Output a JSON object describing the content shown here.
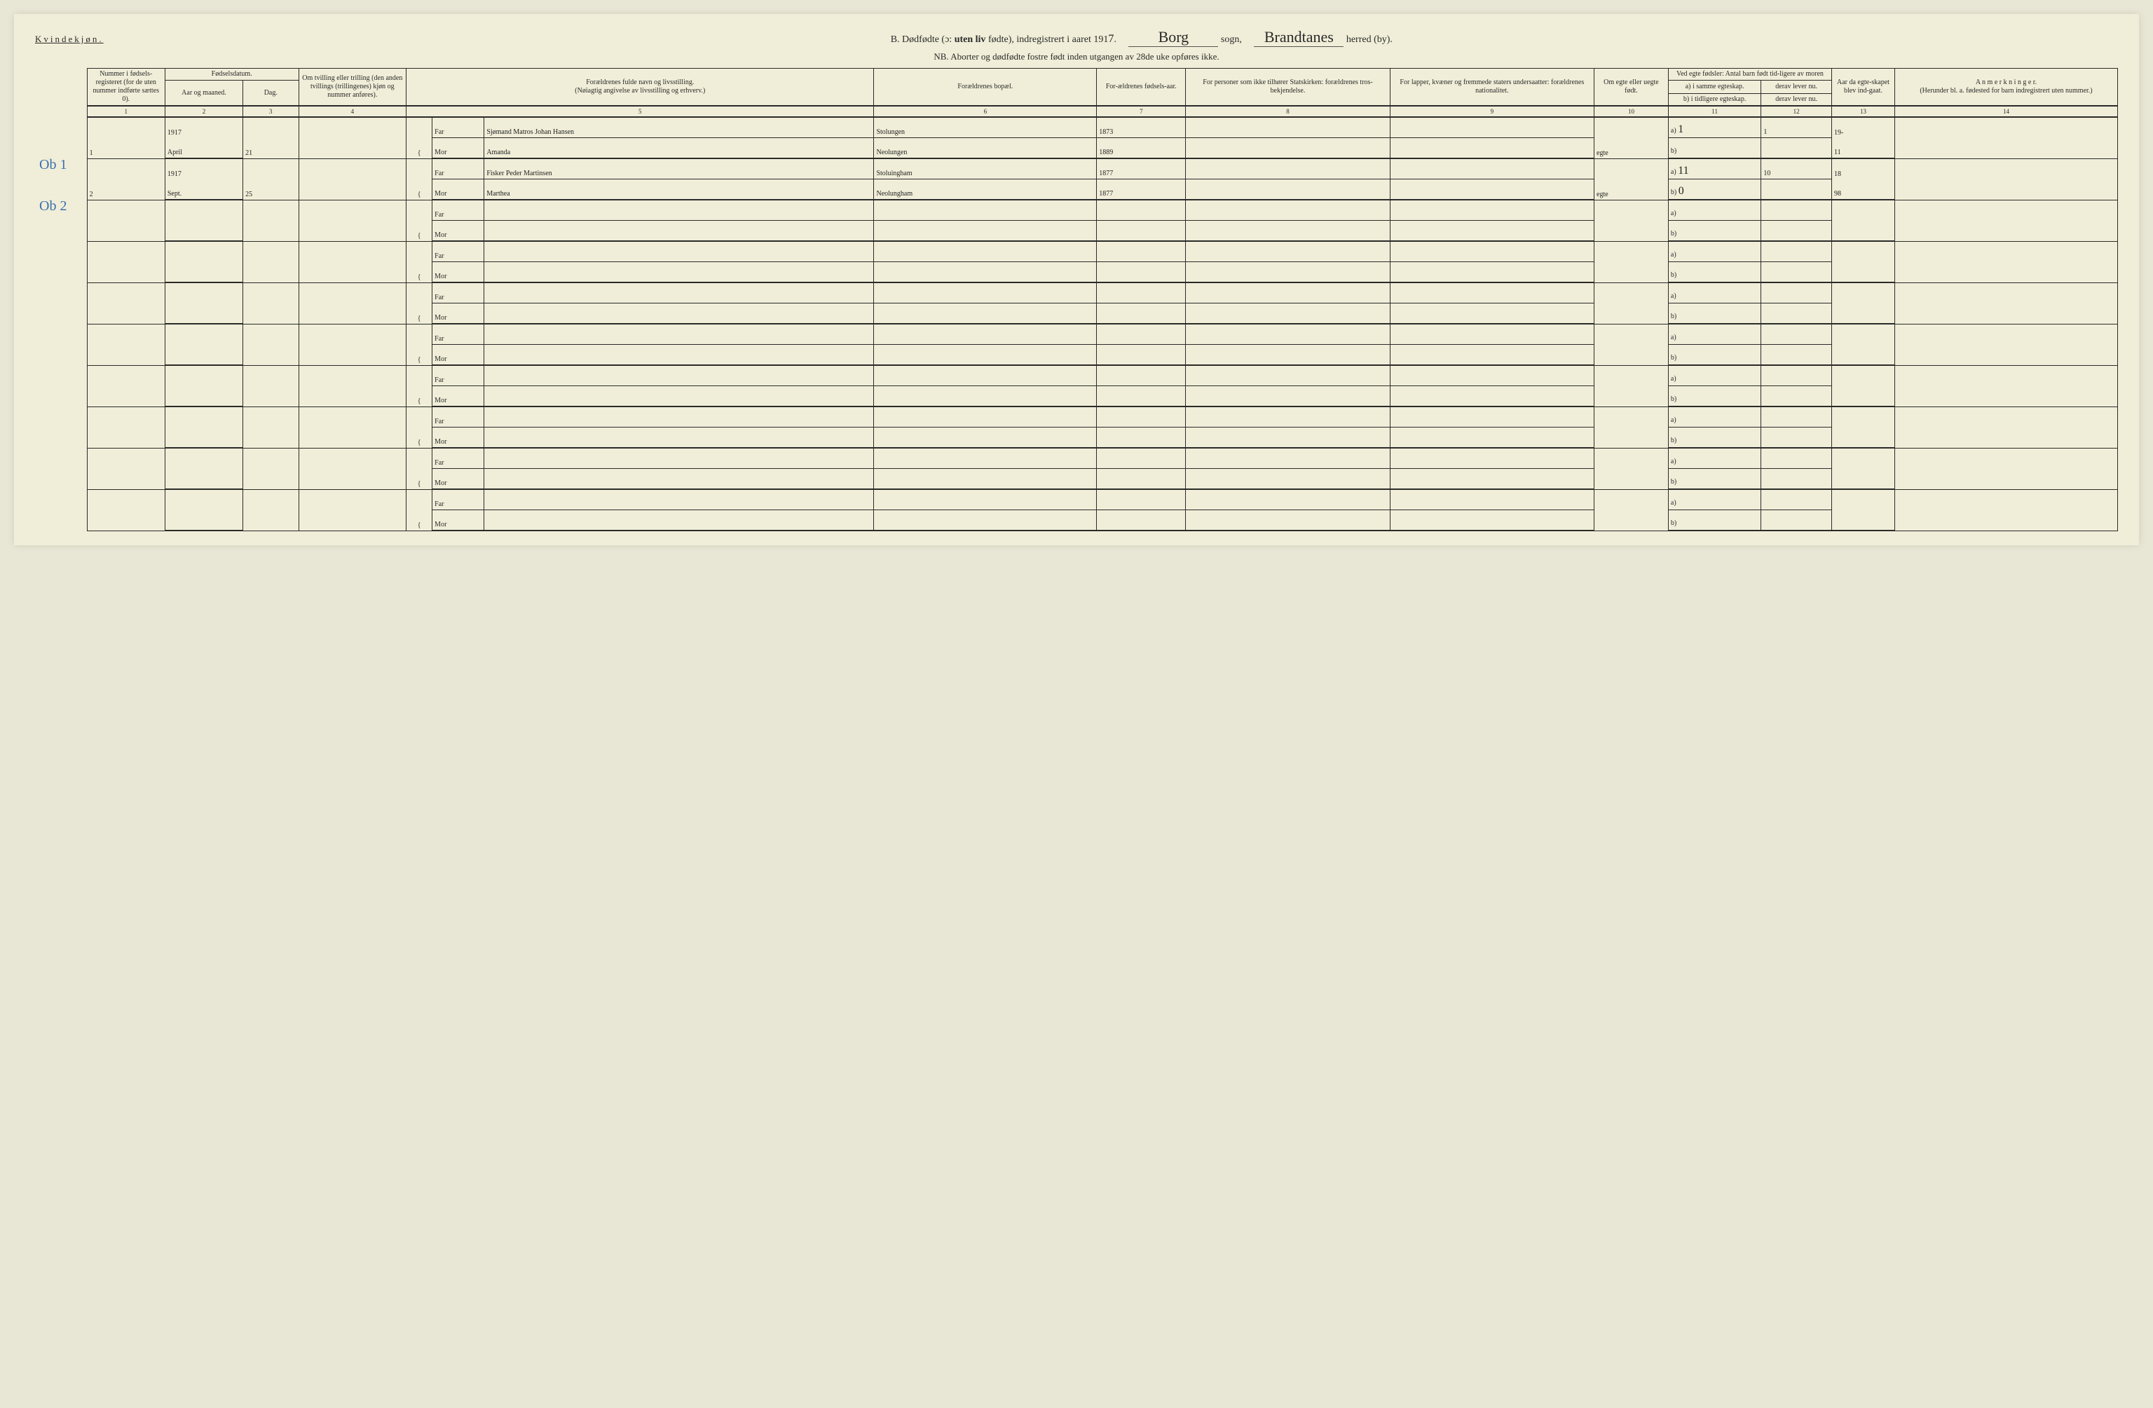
{
  "header": {
    "gender": "Kvindekjøn.",
    "title_prefix": "B. Dødfødte (ɔ:",
    "title_mid": "uten liv",
    "title_suffix": "fødte), indregistrert i aaret 191",
    "year_digit": "7",
    "sogn_hand": "Borg",
    "sogn_label": "sogn,",
    "herred_hand": "Brandtanes",
    "herred_label": "herred (by).",
    "nb": "NB.  Aborter og dødfødte fostre født inden utgangen av 28de uke opføres ikke."
  },
  "cols": {
    "c1": "Nummer i fødsels-registeret (for de uten nummer indførte sættes 0).",
    "c2_top": "Fødselsdatum.",
    "c2a": "Aar og maaned.",
    "c2b": "Dag.",
    "c4": "Om tvilling eller trilling (den anden tvillings (trillingenes) kjøn og nummer anføres).",
    "c5": "Forældrenes fulde navn og livsstilling.\n(Nøiagtig angivelse av livsstilling og erhverv.)",
    "c6": "Forældrenes bopæl.",
    "c7": "For-ældrenes fødsels-aar.",
    "c8": "For personer som ikke tilhører Statskirken: forældrenes tros-bekjendelse.",
    "c9": "For lapper, kvæner og fremmede staters undersaatter: forældrenes nationalitet.",
    "c10": "Om egte eller uegte født.",
    "c11_top": "Ved egte fødsler: Antal barn født tid-ligere av moren",
    "c11a": "a) i samme egteskap.",
    "c11b": "b) i tidligere egteskap.",
    "c12a": "derav lever nu.",
    "c12b": "derav lever nu.",
    "c13": "Aar da egte-skapet blev ind-gaat.",
    "c14": "A n m e r k n i n g e r.\n(Herunder bl. a. fødested for barn indregistrert uten nummer.)"
  },
  "colnums": [
    "1",
    "2",
    "3",
    "4",
    "5",
    "6",
    "7",
    "8",
    "9",
    "10",
    "11",
    "12",
    "13",
    "14"
  ],
  "rows": [
    {
      "margin": "Ob 1",
      "num": "1",
      "year": "1917",
      "month": "April",
      "day": "21",
      "far_name": "Sjømand Matros Johan Hansen",
      "far_bopael": "Stolungen",
      "far_aar": "1873",
      "mor_name": "Amanda",
      "mor_bopael": "Neolungen",
      "mor_aar": "1889",
      "egte": "egte",
      "a_val": "1",
      "a_lever": "1",
      "aar_egt": "19-",
      "b_val": "",
      "b_lever": "",
      "aar_egt2": "11"
    },
    {
      "margin": "Ob 2",
      "num": "2",
      "year": "1917",
      "month": "Sept.",
      "day": "25",
      "far_name": "Fisker Peder Martinsen",
      "far_bopael": "Stoluingham",
      "far_aar": "1877",
      "mor_name": "Marthea",
      "mor_bopael": "Neolungham",
      "mor_aar": "1877",
      "egte": "egte",
      "a_val": "11",
      "a_lever": "10",
      "aar_egt": "18",
      "b_val": "0",
      "b_lever": "",
      "aar_egt2": "98"
    }
  ],
  "empty_count": 8,
  "labels": {
    "far": "Far",
    "mor": "Mor",
    "a": "a)",
    "b": "b)"
  },
  "style": {
    "bg": "#f0eed8",
    "ink": "#2a2a2a",
    "blue": "#3a6fb0",
    "cursive_font": "Brush Script MT"
  }
}
